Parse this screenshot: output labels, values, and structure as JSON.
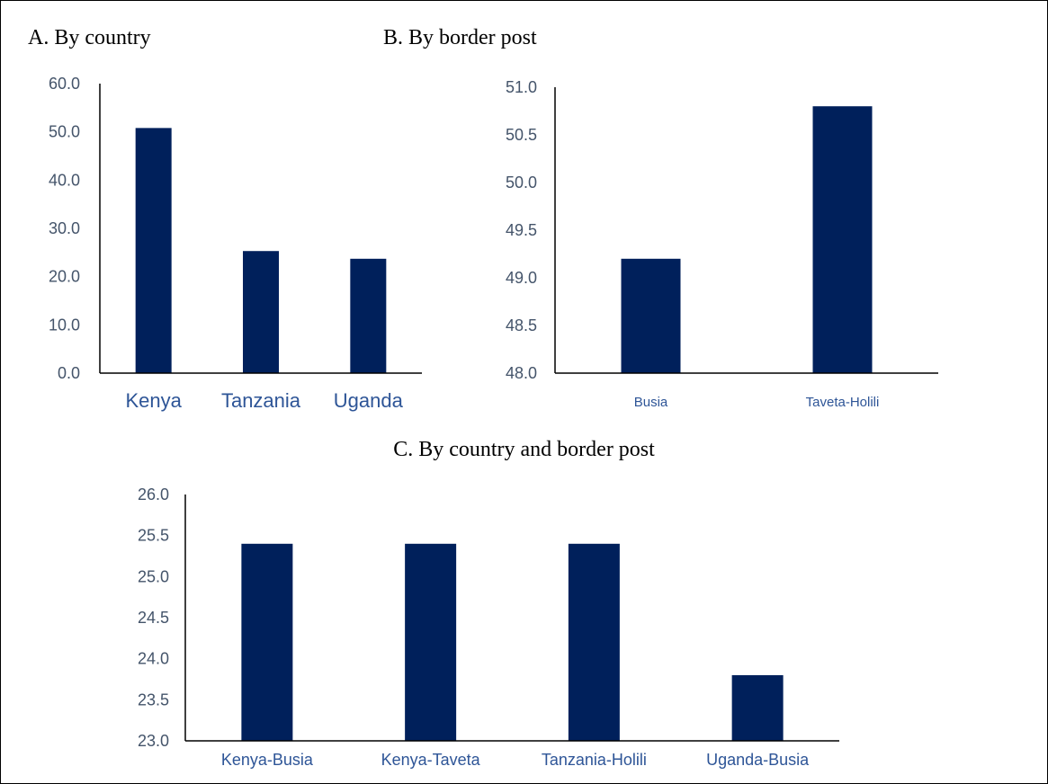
{
  "figure": {
    "colors": {
      "bar": "#00205b",
      "axis_text": "#44546a",
      "category_text": "#2e5597",
      "axis_line": "#000000"
    }
  },
  "chart_data": [
    {
      "id": "a",
      "type": "bar",
      "title": "A.  By country",
      "categories": [
        "Kenya",
        "Tanzania",
        "Uganda"
      ],
      "values": [
        50.8,
        25.3,
        23.7
      ],
      "ylim": [
        0,
        60
      ],
      "yticks": [
        "0.0",
        "10.0",
        "20.0",
        "30.0",
        "40.0",
        "50.0",
        "60.0"
      ],
      "xlabel": "",
      "ylabel": "",
      "legend": "none",
      "grid": false
    },
    {
      "id": "b",
      "type": "bar",
      "title": "B. By border post",
      "categories": [
        "Busia",
        "Taveta-Holili"
      ],
      "values": [
        49.2,
        50.8
      ],
      "ylim": [
        48,
        51
      ],
      "yticks": [
        "48.0",
        "48.5",
        "49.0",
        "49.5",
        "50.0",
        "50.5",
        "51.0"
      ],
      "xlabel": "",
      "ylabel": "",
      "legend": "none",
      "grid": false
    },
    {
      "id": "c",
      "type": "bar",
      "title": "C. By country and border post",
      "categories": [
        "Kenya-Busia",
        "Kenya-Taveta",
        "Tanzania-Holili",
        "Uganda-Busia"
      ],
      "values": [
        25.4,
        25.4,
        25.4,
        23.8
      ],
      "ylim": [
        23,
        26
      ],
      "yticks": [
        "23.0",
        "23.5",
        "24.0",
        "24.5",
        "25.0",
        "25.5",
        "26.0"
      ],
      "xlabel": "",
      "ylabel": "",
      "legend": "none",
      "grid": false
    }
  ]
}
